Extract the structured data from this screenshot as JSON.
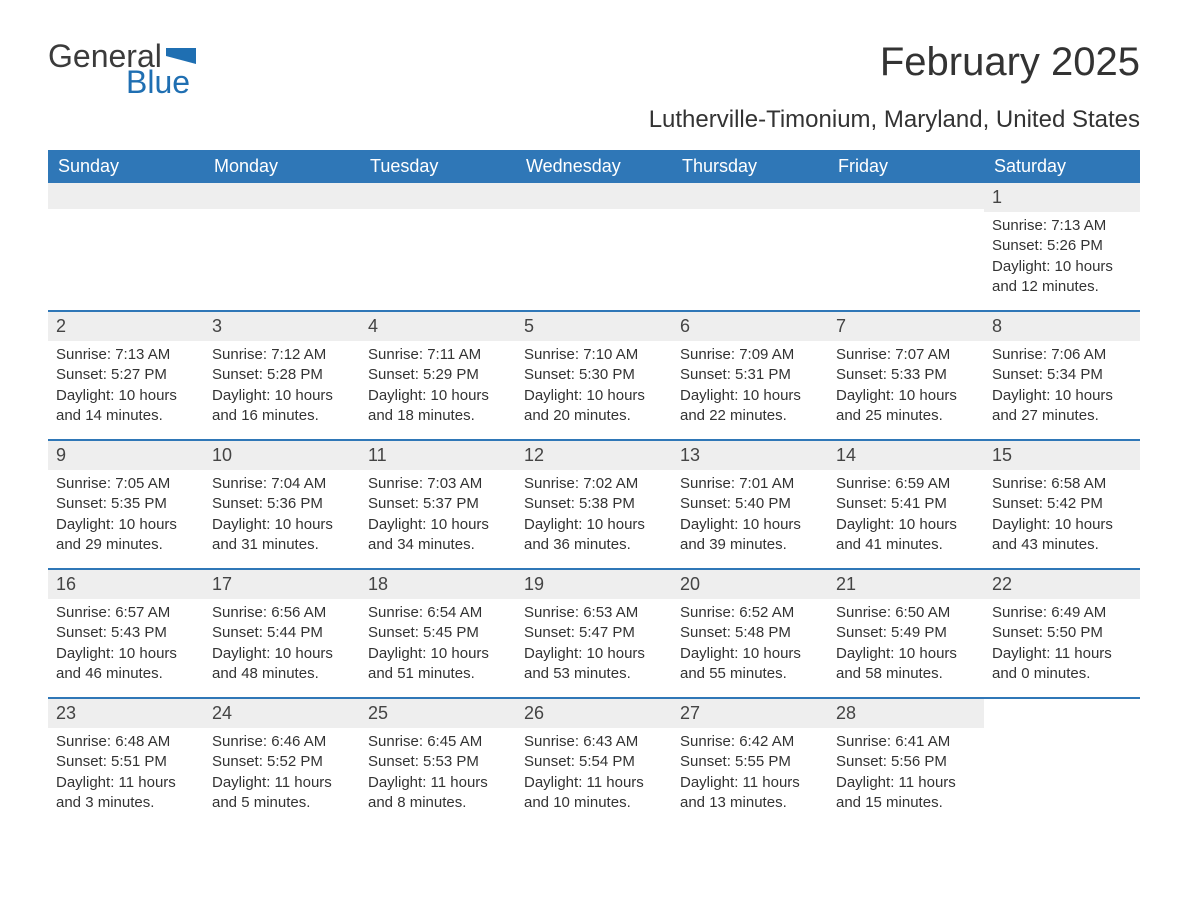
{
  "logo": {
    "text1": "General",
    "text2": "Blue",
    "flag_color": "#1f6fb2"
  },
  "title": "February 2025",
  "location": "Lutherville-Timonium, Maryland, United States",
  "colors": {
    "header_bg": "#2f77b7",
    "header_text": "#ffffff",
    "daynum_bg": "#eeeeee",
    "text": "#333333",
    "rule": "#2f77b7"
  },
  "weekdays": [
    "Sunday",
    "Monday",
    "Tuesday",
    "Wednesday",
    "Thursday",
    "Friday",
    "Saturday"
  ],
  "weeks": [
    [
      null,
      null,
      null,
      null,
      null,
      null,
      {
        "n": "1",
        "sunrise": "Sunrise: 7:13 AM",
        "sunset": "Sunset: 5:26 PM",
        "daylight": "Daylight: 10 hours and 12 minutes."
      }
    ],
    [
      {
        "n": "2",
        "sunrise": "Sunrise: 7:13 AM",
        "sunset": "Sunset: 5:27 PM",
        "daylight": "Daylight: 10 hours and 14 minutes."
      },
      {
        "n": "3",
        "sunrise": "Sunrise: 7:12 AM",
        "sunset": "Sunset: 5:28 PM",
        "daylight": "Daylight: 10 hours and 16 minutes."
      },
      {
        "n": "4",
        "sunrise": "Sunrise: 7:11 AM",
        "sunset": "Sunset: 5:29 PM",
        "daylight": "Daylight: 10 hours and 18 minutes."
      },
      {
        "n": "5",
        "sunrise": "Sunrise: 7:10 AM",
        "sunset": "Sunset: 5:30 PM",
        "daylight": "Daylight: 10 hours and 20 minutes."
      },
      {
        "n": "6",
        "sunrise": "Sunrise: 7:09 AM",
        "sunset": "Sunset: 5:31 PM",
        "daylight": "Daylight: 10 hours and 22 minutes."
      },
      {
        "n": "7",
        "sunrise": "Sunrise: 7:07 AM",
        "sunset": "Sunset: 5:33 PM",
        "daylight": "Daylight: 10 hours and 25 minutes."
      },
      {
        "n": "8",
        "sunrise": "Sunrise: 7:06 AM",
        "sunset": "Sunset: 5:34 PM",
        "daylight": "Daylight: 10 hours and 27 minutes."
      }
    ],
    [
      {
        "n": "9",
        "sunrise": "Sunrise: 7:05 AM",
        "sunset": "Sunset: 5:35 PM",
        "daylight": "Daylight: 10 hours and 29 minutes."
      },
      {
        "n": "10",
        "sunrise": "Sunrise: 7:04 AM",
        "sunset": "Sunset: 5:36 PM",
        "daylight": "Daylight: 10 hours and 31 minutes."
      },
      {
        "n": "11",
        "sunrise": "Sunrise: 7:03 AM",
        "sunset": "Sunset: 5:37 PM",
        "daylight": "Daylight: 10 hours and 34 minutes."
      },
      {
        "n": "12",
        "sunrise": "Sunrise: 7:02 AM",
        "sunset": "Sunset: 5:38 PM",
        "daylight": "Daylight: 10 hours and 36 minutes."
      },
      {
        "n": "13",
        "sunrise": "Sunrise: 7:01 AM",
        "sunset": "Sunset: 5:40 PM",
        "daylight": "Daylight: 10 hours and 39 minutes."
      },
      {
        "n": "14",
        "sunrise": "Sunrise: 6:59 AM",
        "sunset": "Sunset: 5:41 PM",
        "daylight": "Daylight: 10 hours and 41 minutes."
      },
      {
        "n": "15",
        "sunrise": "Sunrise: 6:58 AM",
        "sunset": "Sunset: 5:42 PM",
        "daylight": "Daylight: 10 hours and 43 minutes."
      }
    ],
    [
      {
        "n": "16",
        "sunrise": "Sunrise: 6:57 AM",
        "sunset": "Sunset: 5:43 PM",
        "daylight": "Daylight: 10 hours and 46 minutes."
      },
      {
        "n": "17",
        "sunrise": "Sunrise: 6:56 AM",
        "sunset": "Sunset: 5:44 PM",
        "daylight": "Daylight: 10 hours and 48 minutes."
      },
      {
        "n": "18",
        "sunrise": "Sunrise: 6:54 AM",
        "sunset": "Sunset: 5:45 PM",
        "daylight": "Daylight: 10 hours and 51 minutes."
      },
      {
        "n": "19",
        "sunrise": "Sunrise: 6:53 AM",
        "sunset": "Sunset: 5:47 PM",
        "daylight": "Daylight: 10 hours and 53 minutes."
      },
      {
        "n": "20",
        "sunrise": "Sunrise: 6:52 AM",
        "sunset": "Sunset: 5:48 PM",
        "daylight": "Daylight: 10 hours and 55 minutes."
      },
      {
        "n": "21",
        "sunrise": "Sunrise: 6:50 AM",
        "sunset": "Sunset: 5:49 PM",
        "daylight": "Daylight: 10 hours and 58 minutes."
      },
      {
        "n": "22",
        "sunrise": "Sunrise: 6:49 AM",
        "sunset": "Sunset: 5:50 PM",
        "daylight": "Daylight: 11 hours and 0 minutes."
      }
    ],
    [
      {
        "n": "23",
        "sunrise": "Sunrise: 6:48 AM",
        "sunset": "Sunset: 5:51 PM",
        "daylight": "Daylight: 11 hours and 3 minutes."
      },
      {
        "n": "24",
        "sunrise": "Sunrise: 6:46 AM",
        "sunset": "Sunset: 5:52 PM",
        "daylight": "Daylight: 11 hours and 5 minutes."
      },
      {
        "n": "25",
        "sunrise": "Sunrise: 6:45 AM",
        "sunset": "Sunset: 5:53 PM",
        "daylight": "Daylight: 11 hours and 8 minutes."
      },
      {
        "n": "26",
        "sunrise": "Sunrise: 6:43 AM",
        "sunset": "Sunset: 5:54 PM",
        "daylight": "Daylight: 11 hours and 10 minutes."
      },
      {
        "n": "27",
        "sunrise": "Sunrise: 6:42 AM",
        "sunset": "Sunset: 5:55 PM",
        "daylight": "Daylight: 11 hours and 13 minutes."
      },
      {
        "n": "28",
        "sunrise": "Sunrise: 6:41 AM",
        "sunset": "Sunset: 5:56 PM",
        "daylight": "Daylight: 11 hours and 15 minutes."
      },
      null
    ]
  ]
}
